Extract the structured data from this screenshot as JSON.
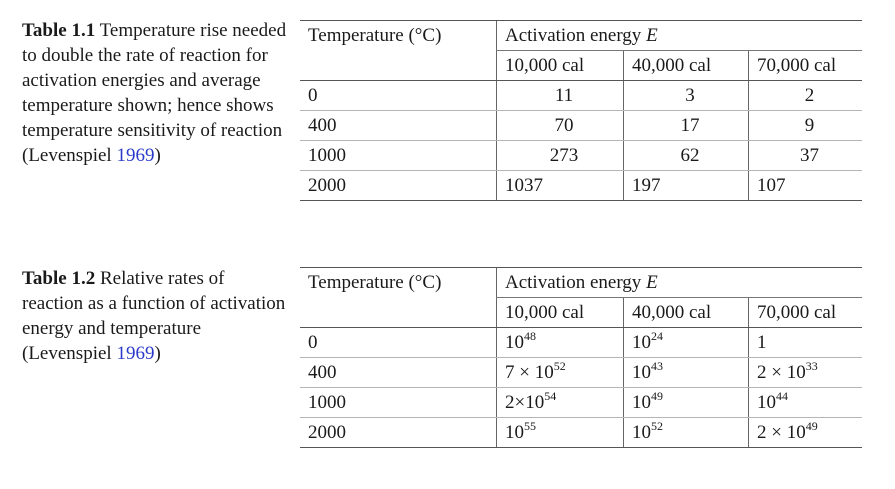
{
  "table1": {
    "label": "Table 1.1",
    "caption": "Temperature rise needed to double the rate of reaction for activation energies and average temperature shown; hence shows temperature sensitivity of reaction (Levenspiel",
    "citation_year": "1969",
    "caption_end": ")",
    "temp_header": "Temperature (°C)",
    "group_header": "Activation energy",
    "group_var": "E",
    "energies": [
      "10,000 cal",
      "40,000 cal",
      "70,000 cal"
    ],
    "rows": [
      {
        "temp": "0",
        "v1": "11",
        "v2": "3",
        "v3": "2"
      },
      {
        "temp": "400",
        "v1": "70",
        "v2": "17",
        "v3": "9"
      },
      {
        "temp": "1000",
        "v1": "273",
        "v2": "62",
        "v3": "37"
      },
      {
        "temp": "2000",
        "v1": "1037",
        "v2": "197",
        "v3": "107"
      }
    ]
  },
  "table2": {
    "label": "Table 1.2",
    "caption": "Relative rates of reaction as a function of activation energy and temperature (Levenspiel",
    "citation_year": "1969",
    "caption_end": ")",
    "temp_header": "Temperature (°C)",
    "group_header": "Activation energy",
    "group_var": "E",
    "energies": [
      "10,000 cal",
      "40,000 cal",
      "70,000 cal"
    ],
    "rows": [
      {
        "temp": "0",
        "v1": {
          "pre": "",
          "base": "10",
          "exp": "48"
        },
        "v2": {
          "pre": "",
          "base": "10",
          "exp": "24"
        },
        "v3": {
          "pre": "1",
          "base": "",
          "exp": ""
        }
      },
      {
        "temp": "400",
        "v1": {
          "pre": "7 × ",
          "base": "10",
          "exp": "52"
        },
        "v2": {
          "pre": "",
          "base": "10",
          "exp": "43"
        },
        "v3": {
          "pre": "2 × ",
          "base": "10",
          "exp": "33"
        }
      },
      {
        "temp": "1000",
        "v1": {
          "pre": "2×",
          "base": "10",
          "exp": "54"
        },
        "v2": {
          "pre": "",
          "base": "10",
          "exp": "49"
        },
        "v3": {
          "pre": "",
          "base": "10",
          "exp": "44"
        }
      },
      {
        "temp": "2000",
        "v1": {
          "pre": "",
          "base": "10",
          "exp": "55"
        },
        "v2": {
          "pre": "",
          "base": "10",
          "exp": "52"
        },
        "v3": {
          "pre": "2 × ",
          "base": "10",
          "exp": "49"
        }
      }
    ]
  }
}
